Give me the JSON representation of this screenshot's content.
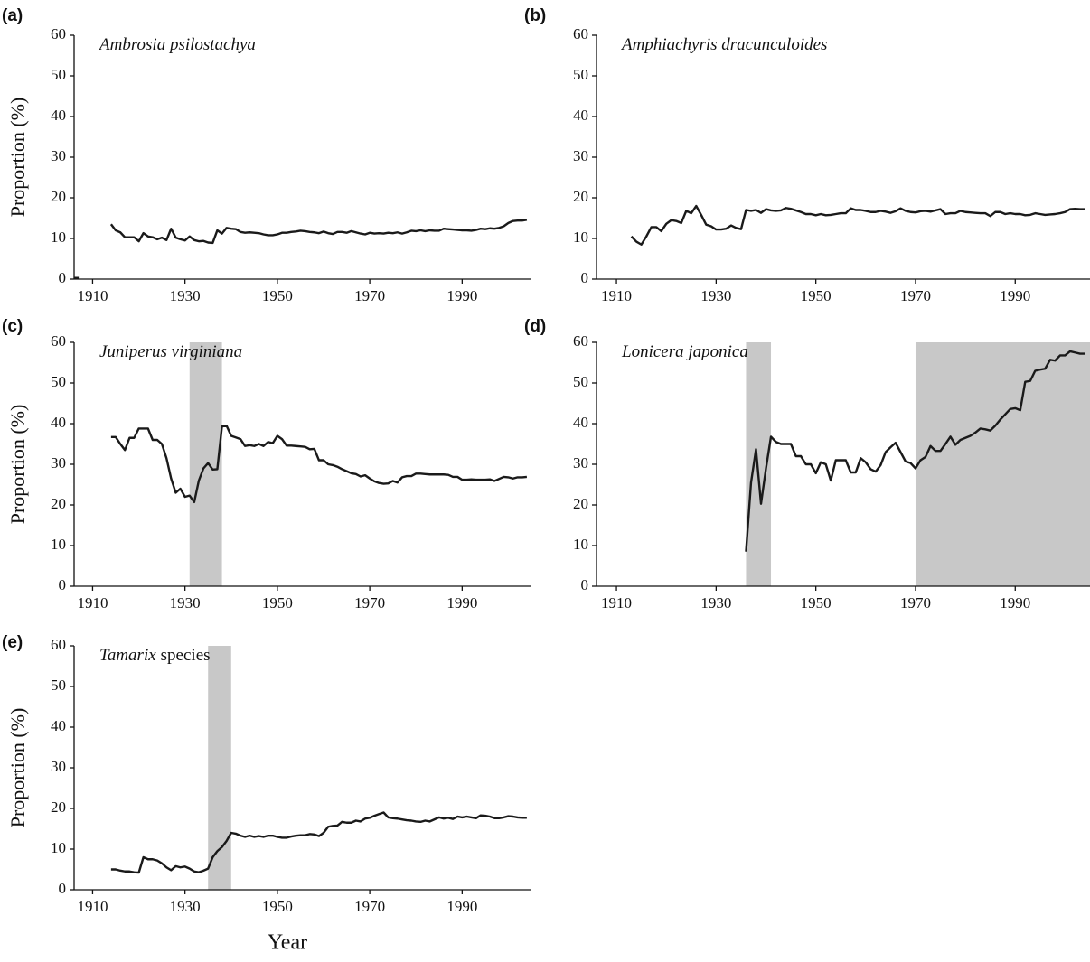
{
  "chart_data": [
    {
      "type": "line",
      "panel_label": "(a)",
      "title": "Ambrosia psilostachya",
      "ylabel": "Proportion (%)",
      "color": "#1a1a1a",
      "x": [
        1906,
        1907,
        1908,
        1914,
        1915,
        1916,
        1917,
        1918,
        1919,
        1920,
        1921,
        1922,
        1923,
        1924,
        1925,
        1926,
        1927,
        1928,
        1929,
        1930,
        1931,
        1932,
        1933,
        1934,
        1935,
        1936,
        1937,
        1938,
        1939,
        1940,
        1941,
        1942,
        1943,
        1944,
        1945,
        1946,
        1947,
        1948,
        1949,
        1950,
        1951,
        1952,
        1953,
        1954,
        1955,
        1956,
        1957,
        1958,
        1959,
        1960,
        1961,
        1962,
        1963,
        1964,
        1965,
        1966,
        1967,
        1968,
        1969,
        1970,
        1971,
        1972,
        1973,
        1974,
        1975,
        1976,
        1977,
        1978,
        1979,
        1980,
        1981,
        1982,
        1983,
        1984,
        1985,
        1986,
        1987,
        1988,
        1989,
        1990,
        1991,
        1992,
        1993,
        1994,
        1995,
        1996,
        1997,
        1998,
        1999,
        2000,
        2001,
        2002,
        2003,
        2004
      ],
      "values": [
        0.3,
        0.3,
        null,
        13.5,
        12,
        11.5,
        10.3,
        10.3,
        10.3,
        9.3,
        11.3,
        10.5,
        10.3,
        9.8,
        10.2,
        9.6,
        12.4,
        10.2,
        9.8,
        9.5,
        10.5,
        9.6,
        9.3,
        9.4,
        9.0,
        8.9,
        12.0,
        11.2,
        12.6,
        12.4,
        12.3,
        11.6,
        11.4,
        11.5,
        11.4,
        11.3,
        11.0,
        10.8,
        10.8,
        11.0,
        11.4,
        11.4,
        11.6,
        11.7,
        11.9,
        11.8,
        11.6,
        11.5,
        11.3,
        11.7,
        11.3,
        11.1,
        11.6,
        11.6,
        11.4,
        11.8,
        11.5,
        11.2,
        11.0,
        11.4,
        11.2,
        11.3,
        11.2,
        11.4,
        11.3,
        11.5,
        11.2,
        11.5,
        11.9,
        11.8,
        12.0,
        11.8,
        12.0,
        11.9,
        11.9,
        12.4,
        12.3,
        12.2,
        12.1,
        12.0,
        12.0,
        11.9,
        12.1,
        12.4,
        12.3,
        12.5,
        12.4,
        12.6,
        13.0,
        13.8,
        14.3,
        14.4,
        14.4,
        14.6
      ],
      "xlim": [
        1906,
        2005
      ],
      "ylim": [
        0,
        60
      ],
      "xticks": [
        1910,
        1930,
        1950,
        1970,
        1990
      ],
      "yticks": [
        0,
        10,
        20,
        30,
        40,
        50,
        60
      ],
      "shaded": [],
      "shade_color": "#c8c8c8"
    },
    {
      "type": "line",
      "panel_label": "(b)",
      "title": "Amphiachyris dracunculoides",
      "color": "#1a1a1a",
      "x": [
        1913,
        1914,
        1915,
        1916,
        1917,
        1918,
        1919,
        1920,
        1921,
        1922,
        1923,
        1924,
        1925,
        1926,
        1927,
        1928,
        1929,
        1930,
        1931,
        1932,
        1933,
        1934,
        1935,
        1936,
        1937,
        1938,
        1939,
        1940,
        1941,
        1942,
        1943,
        1944,
        1945,
        1946,
        1947,
        1948,
        1949,
        1950,
        1951,
        1952,
        1953,
        1954,
        1955,
        1956,
        1957,
        1958,
        1959,
        1960,
        1961,
        1962,
        1963,
        1964,
        1965,
        1966,
        1967,
        1968,
        1969,
        1970,
        1971,
        1972,
        1973,
        1974,
        1975,
        1976,
        1977,
        1978,
        1979,
        1980,
        1981,
        1982,
        1983,
        1984,
        1985,
        1986,
        1987,
        1988,
        1989,
        1990,
        1991,
        1992,
        1993,
        1994,
        1995,
        1996,
        1997,
        1998,
        1999,
        2000,
        2001,
        2002,
        2003,
        2004
      ],
      "values": [
        10.5,
        9.2,
        8.5,
        10.5,
        12.8,
        12.8,
        11.8,
        13.6,
        14.5,
        14.3,
        13.8,
        16.8,
        16.2,
        18.0,
        15.8,
        13.4,
        13.0,
        12.2,
        12.2,
        12.4,
        13.2,
        12.6,
        12.3,
        17.0,
        16.8,
        17.0,
        16.3,
        17.2,
        16.9,
        16.8,
        16.9,
        17.5,
        17.3,
        16.9,
        16.5,
        16.0,
        16.0,
        15.7,
        16.0,
        15.7,
        15.8,
        16.0,
        16.2,
        16.2,
        17.4,
        17.0,
        17.0,
        16.8,
        16.5,
        16.5,
        16.8,
        16.6,
        16.3,
        16.7,
        17.4,
        16.8,
        16.5,
        16.4,
        16.7,
        16.8,
        16.6,
        16.9,
        17.2,
        16.0,
        16.2,
        16.2,
        16.8,
        16.5,
        16.4,
        16.3,
        16.2,
        16.2,
        15.5,
        16.5,
        16.5,
        16.0,
        16.2,
        16.0,
        16.0,
        15.7,
        15.8,
        16.2,
        16.0,
        15.8,
        15.9,
        16.0,
        16.2,
        16.5,
        17.2,
        17.3,
        17.2,
        17.2
      ],
      "xlim": [
        1906,
        2005
      ],
      "ylim": [
        0,
        60
      ],
      "xticks": [
        1910,
        1930,
        1950,
        1970,
        1990
      ],
      "yticks": [
        0,
        10,
        20,
        30,
        40,
        50,
        60
      ],
      "shaded": [],
      "shade_color": "#c8c8c8"
    },
    {
      "type": "line",
      "panel_label": "(c)",
      "title": "Juniperus virginiana",
      "ylabel": "Proportion (%)",
      "color": "#1a1a1a",
      "x": [
        1914,
        1915,
        1916,
        1917,
        1918,
        1919,
        1920,
        1921,
        1922,
        1923,
        1924,
        1925,
        1926,
        1927,
        1928,
        1929,
        1930,
        1931,
        1932,
        1933,
        1934,
        1935,
        1936,
        1937,
        1938,
        1939,
        1940,
        1941,
        1942,
        1943,
        1944,
        1945,
        1946,
        1947,
        1948,
        1949,
        1950,
        1951,
        1952,
        1953,
        1954,
        1955,
        1956,
        1957,
        1958,
        1959,
        1960,
        1961,
        1962,
        1963,
        1964,
        1965,
        1966,
        1967,
        1968,
        1969,
        1970,
        1971,
        1972,
        1973,
        1974,
        1975,
        1976,
        1977,
        1978,
        1979,
        1980,
        1981,
        1982,
        1983,
        1984,
        1985,
        1986,
        1987,
        1988,
        1989,
        1990,
        1991,
        1992,
        1993,
        1994,
        1995,
        1996,
        1997,
        1998,
        1999,
        2000,
        2001,
        2002,
        2003,
        2004
      ],
      "values": [
        36.7,
        36.7,
        35.0,
        33.5,
        36.5,
        36.5,
        38.8,
        38.8,
        38.8,
        36.0,
        36.0,
        35.0,
        31.5,
        26.5,
        23.0,
        24.0,
        22.0,
        22.3,
        20.7,
        26.0,
        29.0,
        30.3,
        28.7,
        28.8,
        39.3,
        39.5,
        37.0,
        36.6,
        36.2,
        34.5,
        34.7,
        34.5,
        35.0,
        34.5,
        35.5,
        35.2,
        37.0,
        36.2,
        34.6,
        34.6,
        34.5,
        34.4,
        34.3,
        33.7,
        33.8,
        31.0,
        31.0,
        30.0,
        29.8,
        29.4,
        28.8,
        28.3,
        27.8,
        27.6,
        27.0,
        27.3,
        26.5,
        25.8,
        25.4,
        25.2,
        25.3,
        25.9,
        25.5,
        26.8,
        27.1,
        27.1,
        27.7,
        27.7,
        27.6,
        27.5,
        27.5,
        27.5,
        27.5,
        27.4,
        26.9,
        26.9,
        26.2,
        26.2,
        26.3,
        26.2,
        26.2,
        26.2,
        26.3,
        25.9,
        26.4,
        26.9,
        26.8,
        26.5,
        26.8,
        26.8,
        26.9
      ],
      "xlim": [
        1906,
        2005
      ],
      "ylim": [
        0,
        60
      ],
      "xticks": [
        1910,
        1930,
        1950,
        1970,
        1990
      ],
      "yticks": [
        0,
        10,
        20,
        30,
        40,
        50,
        60
      ],
      "shaded": [
        [
          1931,
          1938
        ]
      ],
      "shade_color": "#c8c8c8"
    },
    {
      "type": "line",
      "panel_label": "(d)",
      "title": "Lonicera japonica",
      "color": "#1a1a1a",
      "x": [
        1936,
        1937,
        1938,
        1939,
        1940,
        1941,
        1942,
        1943,
        1944,
        1945,
        1946,
        1947,
        1948,
        1949,
        1950,
        1951,
        1952,
        1953,
        1954,
        1955,
        1956,
        1957,
        1958,
        1959,
        1960,
        1961,
        1962,
        1963,
        1964,
        1965,
        1966,
        1967,
        1968,
        1969,
        1970,
        1971,
        1972,
        1973,
        1974,
        1975,
        1976,
        1977,
        1978,
        1979,
        1980,
        1981,
        1982,
        1983,
        1984,
        1985,
        1986,
        1987,
        1988,
        1989,
        1990,
        1991,
        1992,
        1993,
        1994,
        1995,
        1996,
        1997,
        1998,
        1999,
        2000,
        2001,
        2002,
        2003,
        2004
      ],
      "values": [
        8.5,
        25.5,
        33.7,
        20.3,
        29.0,
        36.8,
        35.5,
        35.0,
        35.0,
        35.0,
        32.0,
        32.0,
        30.0,
        30.0,
        27.8,
        30.5,
        30.0,
        26.0,
        31.0,
        31.0,
        31.0,
        28.0,
        28.0,
        31.5,
        30.5,
        28.8,
        28.2,
        29.8,
        33.0,
        34.2,
        35.3,
        33.0,
        30.7,
        30.3,
        29.0,
        31.0,
        31.8,
        34.5,
        33.3,
        33.3,
        35.0,
        36.8,
        34.8,
        36.0,
        36.5,
        37.0,
        37.8,
        38.8,
        38.6,
        38.3,
        39.5,
        41.0,
        42.3,
        43.6,
        43.8,
        43.3,
        50.3,
        50.5,
        53.0,
        53.3,
        53.5,
        55.7,
        55.5,
        56.8,
        56.8,
        57.8,
        57.5,
        57.2,
        57.2
      ],
      "xlim": [
        1906,
        2005
      ],
      "ylim": [
        0,
        60
      ],
      "xticks": [
        1910,
        1930,
        1950,
        1970,
        1990
      ],
      "yticks": [
        0,
        10,
        20,
        30,
        40,
        50,
        60
      ],
      "shaded": [
        [
          1936,
          1941
        ],
        [
          1970,
          2005
        ]
      ],
      "shade_color": "#c8c8c8"
    },
    {
      "type": "line",
      "panel_label": "(e)",
      "title": "Tamarix",
      "title_suffix": "species",
      "ylabel": "Proportion (%)",
      "xlabel": "Year",
      "color": "#1a1a1a",
      "x": [
        1914,
        1915,
        1916,
        1917,
        1918,
        1919,
        1920,
        1921,
        1922,
        1923,
        1924,
        1925,
        1926,
        1927,
        1928,
        1929,
        1930,
        1931,
        1932,
        1933,
        1934,
        1935,
        1936,
        1937,
        1938,
        1939,
        1940,
        1941,
        1942,
        1943,
        1944,
        1945,
        1946,
        1947,
        1948,
        1949,
        1950,
        1951,
        1952,
        1953,
        1954,
        1955,
        1956,
        1957,
        1958,
        1959,
        1960,
        1961,
        1962,
        1963,
        1964,
        1965,
        1966,
        1967,
        1968,
        1969,
        1970,
        1971,
        1972,
        1973,
        1974,
        1975,
        1976,
        1977,
        1978,
        1979,
        1980,
        1981,
        1982,
        1983,
        1984,
        1985,
        1986,
        1987,
        1988,
        1989,
        1990,
        1991,
        1992,
        1993,
        1994,
        1995,
        1996,
        1997,
        1998,
        1999,
        2000,
        2001,
        2002,
        2003,
        2004
      ],
      "values": [
        5.0,
        5.0,
        4.7,
        4.5,
        4.5,
        4.3,
        4.2,
        8.0,
        7.5,
        7.5,
        7.2,
        6.5,
        5.5,
        4.8,
        5.8,
        5.5,
        5.7,
        5.2,
        4.5,
        4.3,
        4.7,
        5.2,
        8.0,
        9.5,
        10.5,
        12.0,
        14.0,
        13.8,
        13.3,
        13.0,
        13.3,
        13.0,
        13.2,
        13.0,
        13.3,
        13.3,
        13.0,
        12.8,
        12.8,
        13.1,
        13.3,
        13.4,
        13.4,
        13.7,
        13.6,
        13.2,
        14.0,
        15.5,
        15.7,
        15.8,
        16.7,
        16.5,
        16.5,
        17.0,
        16.8,
        17.5,
        17.7,
        18.2,
        18.6,
        19.0,
        17.8,
        17.6,
        17.5,
        17.3,
        17.1,
        17.0,
        16.8,
        16.7,
        17.0,
        16.8,
        17.3,
        17.8,
        17.5,
        17.7,
        17.4,
        18.0,
        17.8,
        18.0,
        17.8,
        17.6,
        18.3,
        18.2,
        18.0,
        17.6,
        17.6,
        17.8,
        18.1,
        18.0,
        17.8,
        17.7,
        17.7
      ],
      "xlim": [
        1906,
        2005
      ],
      "ylim": [
        0,
        60
      ],
      "xticks": [
        1910,
        1930,
        1950,
        1970,
        1990
      ],
      "yticks": [
        0,
        10,
        20,
        30,
        40,
        50,
        60
      ],
      "shaded": [
        [
          1935,
          1940
        ]
      ],
      "shade_color": "#c8c8c8"
    }
  ]
}
